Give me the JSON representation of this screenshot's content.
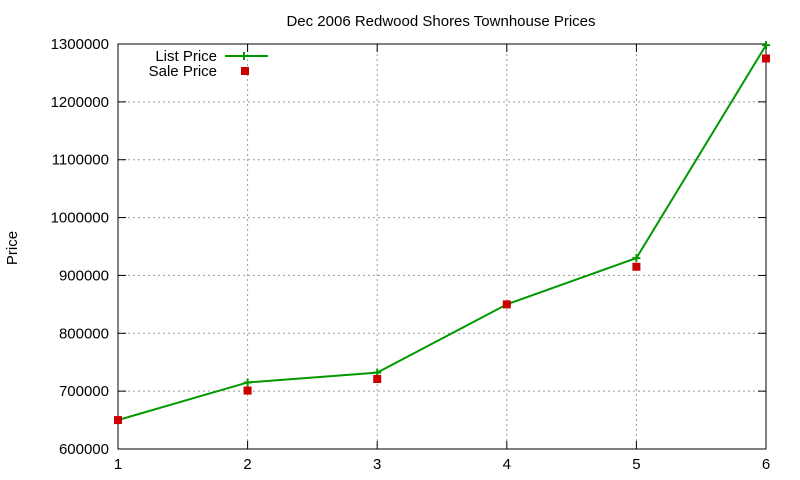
{
  "chart_data": {
    "type": "line",
    "title": "Dec 2006 Redwood Shores Townhouse Prices",
    "xlabel": "",
    "ylabel": "Price",
    "x": [
      1,
      2,
      3,
      4,
      5,
      6
    ],
    "xlim": [
      1,
      6
    ],
    "ylim": [
      600000,
      1300000
    ],
    "xticks": [
      "1",
      "2",
      "3",
      "4",
      "5",
      "6"
    ],
    "yticks": [
      "600000",
      "700000",
      "800000",
      "900000",
      "1000000",
      "1100000",
      "1200000",
      "1300000"
    ],
    "grid": true,
    "legend_position": "top-left",
    "series": [
      {
        "name": "List Price",
        "style": "line-with-plus-markers",
        "color": "#009900",
        "values": [
          650000,
          715000,
          732000,
          850000,
          930000,
          1298000
        ]
      },
      {
        "name": "Sale Price",
        "style": "square-points",
        "color": "#cc0000",
        "values": [
          650000,
          701000,
          721000,
          850000,
          915000,
          1275000
        ]
      }
    ]
  }
}
